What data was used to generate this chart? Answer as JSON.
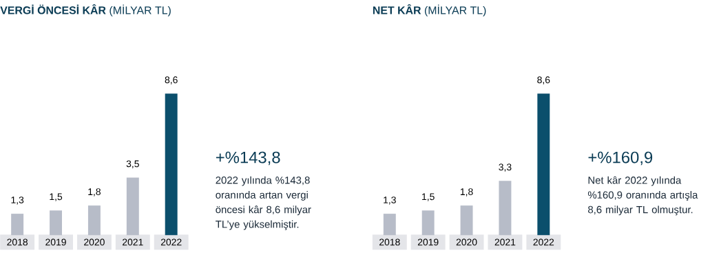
{
  "chart_data": [
    {
      "type": "bar",
      "title": "**VERGİ ÖNCESİ KÂR** (MİLYAR TL)",
      "categories": [
        "2018",
        "2019",
        "2020",
        "2021",
        "2022"
      ],
      "values": [
        1.3,
        1.5,
        1.8,
        3.5,
        8.6
      ],
      "value_labels": [
        "1,3",
        "1,5",
        "1,8",
        "3,5",
        "8,6"
      ],
      "colors": [
        "#b7bcc8",
        "#b7bcc8",
        "#b7bcc8",
        "#b7bcc8",
        "#0b4f6c"
      ],
      "annotations": [
        "+%143,8",
        "2022 yılında %143,8 oranında artan vergi öncesi kâr 8,6 milyar TL’ye yükselmiştir."
      ]
    },
    {
      "type": "bar",
      "title": "**NET KÂR** (MİLYAR TL)",
      "categories": [
        "2018",
        "2019",
        "2020",
        "2021",
        "2022"
      ],
      "values": [
        1.3,
        1.5,
        1.8,
        3.3,
        8.6
      ],
      "value_labels": [
        "1,3",
        "1,5",
        "1,8",
        "3,3",
        "8,6"
      ],
      "colors": [
        "#b7bcc8",
        "#b7bcc8",
        "#b7bcc8",
        "#b7bcc8",
        "#0b4f6c"
      ],
      "annotations": [
        "+%160,9",
        "Net kâr 2022 yılında %160,9 oranında artışla 8,6 milyar TL olmuştur."
      ]
    }
  ]
}
